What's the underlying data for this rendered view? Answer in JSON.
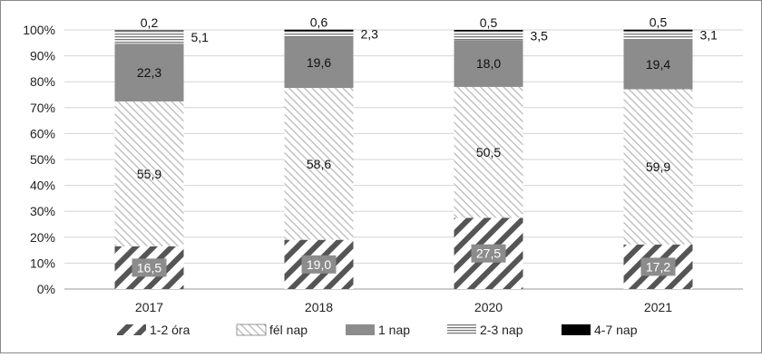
{
  "chart_data": {
    "type": "bar",
    "stacked": true,
    "categories": [
      "2017",
      "2018",
      "2020",
      "2021"
    ],
    "series": [
      {
        "name": "1-2 óra",
        "values": [
          16.5,
          19.0,
          27.5,
          17.2
        ],
        "labels": [
          "16,5",
          "19,0",
          "27,5",
          "17,2"
        ],
        "pattern": "hatch-dark",
        "color": "#555555"
      },
      {
        "name": "fél nap",
        "values": [
          55.9,
          58.6,
          50.5,
          59.9
        ],
        "labels": [
          "55,9",
          "58,6",
          "50,5",
          "59,9"
        ],
        "pattern": "hatch-light",
        "color": "#bbbbbb"
      },
      {
        "name": "1 nap",
        "values": [
          22.3,
          19.6,
          18.0,
          19.4
        ],
        "labels": [
          "22,3",
          "19,6",
          "18,0",
          "19,4"
        ],
        "pattern": "solid",
        "color": "#8c8c8c"
      },
      {
        "name": "2-3 nap",
        "values": [
          5.1,
          2.3,
          3.5,
          3.1
        ],
        "labels": [
          "5,1",
          "2,3",
          "3,5",
          "3,1"
        ],
        "pattern": "hlines",
        "color": "#777777"
      },
      {
        "name": "4-7 nap",
        "values": [
          0.2,
          0.6,
          0.5,
          0.5
        ],
        "labels": [
          "0,2",
          "0,6",
          "0,5",
          "0,5"
        ],
        "pattern": "solid",
        "color": "#000000"
      }
    ],
    "ylim": [
      0,
      100
    ],
    "yticks": [
      "0%",
      "10%",
      "20%",
      "30%",
      "40%",
      "50%",
      "60%",
      "70%",
      "80%",
      "90%",
      "100%"
    ],
    "grid": true,
    "legend": "bottom"
  }
}
